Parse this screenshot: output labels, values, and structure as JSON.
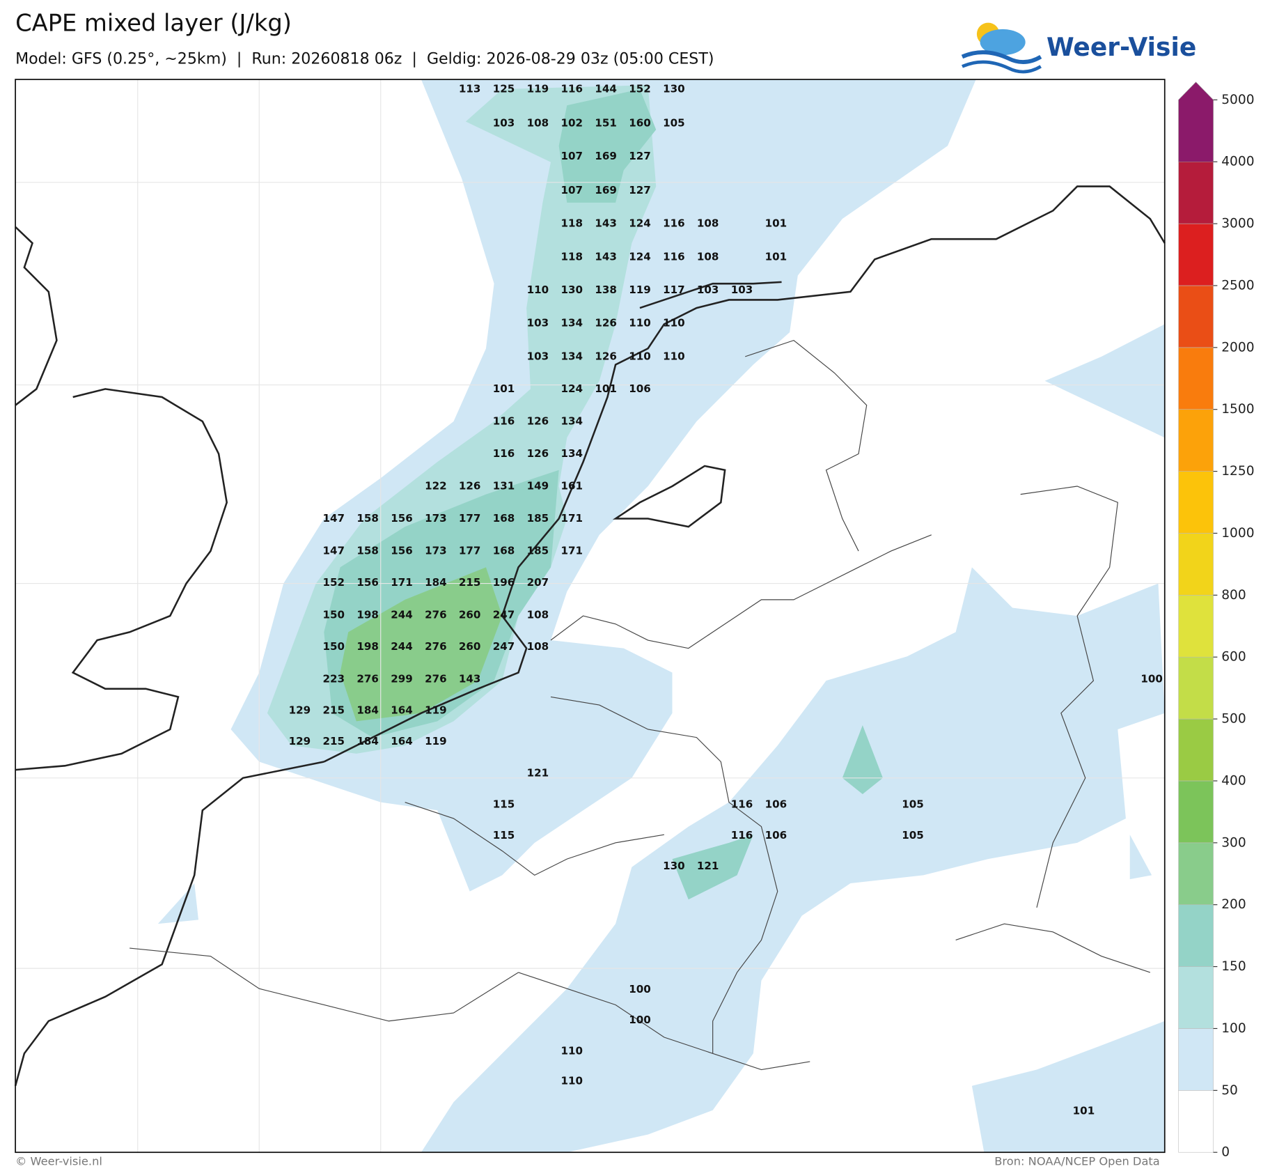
{
  "header": {
    "title": "CAPE mixed layer (J/kg)",
    "subtitle": "Model: GFS (0.25°, ~25km)  |  Run: 20260818 06z  |  Geldig: 2026-08-29 03z (05:00 CEST)",
    "logo": "Weer-Visie"
  },
  "map": {
    "value_rows": [
      [
        113,
        125,
        119,
        116,
        144,
        152,
        130
      ],
      [
        103,
        108,
        102,
        151,
        160,
        105
      ],
      [
        107,
        169,
        127
      ],
      [
        107,
        169,
        127
      ],
      [
        118,
        143,
        124,
        116,
        108,
        101
      ],
      [
        118,
        143,
        124,
        116,
        108,
        101
      ],
      [
        110,
        130,
        138,
        119,
        117,
        103,
        103
      ],
      [
        103,
        134,
        126,
        110,
        110
      ],
      [
        103,
        134,
        126,
        110,
        110
      ],
      [
        101,
        124,
        101,
        106
      ],
      [
        116,
        126,
        134
      ],
      [
        116,
        126,
        134
      ],
      [
        122,
        126,
        131,
        149,
        161
      ],
      [
        147,
        158,
        156,
        173,
        177,
        168,
        185,
        171
      ],
      [
        147,
        158,
        156,
        173,
        177,
        168,
        185,
        171
      ],
      [
        152,
        156,
        171,
        184,
        215,
        196,
        207
      ],
      [
        150,
        198,
        244,
        276,
        260,
        247,
        108
      ],
      [
        150,
        198,
        244,
        276,
        260,
        247,
        108
      ],
      [
        223,
        276,
        299,
        276,
        143,
        100
      ],
      [
        129,
        215,
        184,
        164,
        119
      ],
      [
        129,
        215,
        184,
        164,
        119
      ],
      [
        121
      ],
      [
        115,
        116,
        106,
        105
      ],
      [
        115,
        116,
        106,
        105
      ],
      [
        130,
        121
      ],
      [
        100
      ],
      [
        100
      ],
      [
        110
      ],
      [
        110
      ],
      [
        101
      ]
    ]
  },
  "colorbar": {
    "ticks": [
      0,
      50,
      100,
      150,
      200,
      300,
      400,
      500,
      600,
      800,
      1000,
      1250,
      1500,
      2000,
      2500,
      3000,
      4000,
      5000
    ],
    "colors": [
      "#ffffff",
      "#d0e7f5",
      "#b3e0de",
      "#94d3c7",
      "#89cc8b",
      "#7cc45a",
      "#9acb44",
      "#c3dd48",
      "#dfe23c",
      "#f2d41a",
      "#fcc30a",
      "#fca20a",
      "#f97c0d",
      "#ea4e16",
      "#dc1f1f",
      "#b51c3b",
      "#8b1a6a"
    ]
  },
  "footer": {
    "left": "© Weer-visie.nl",
    "right": "Bron: NOAA/NCEP Open Data"
  }
}
